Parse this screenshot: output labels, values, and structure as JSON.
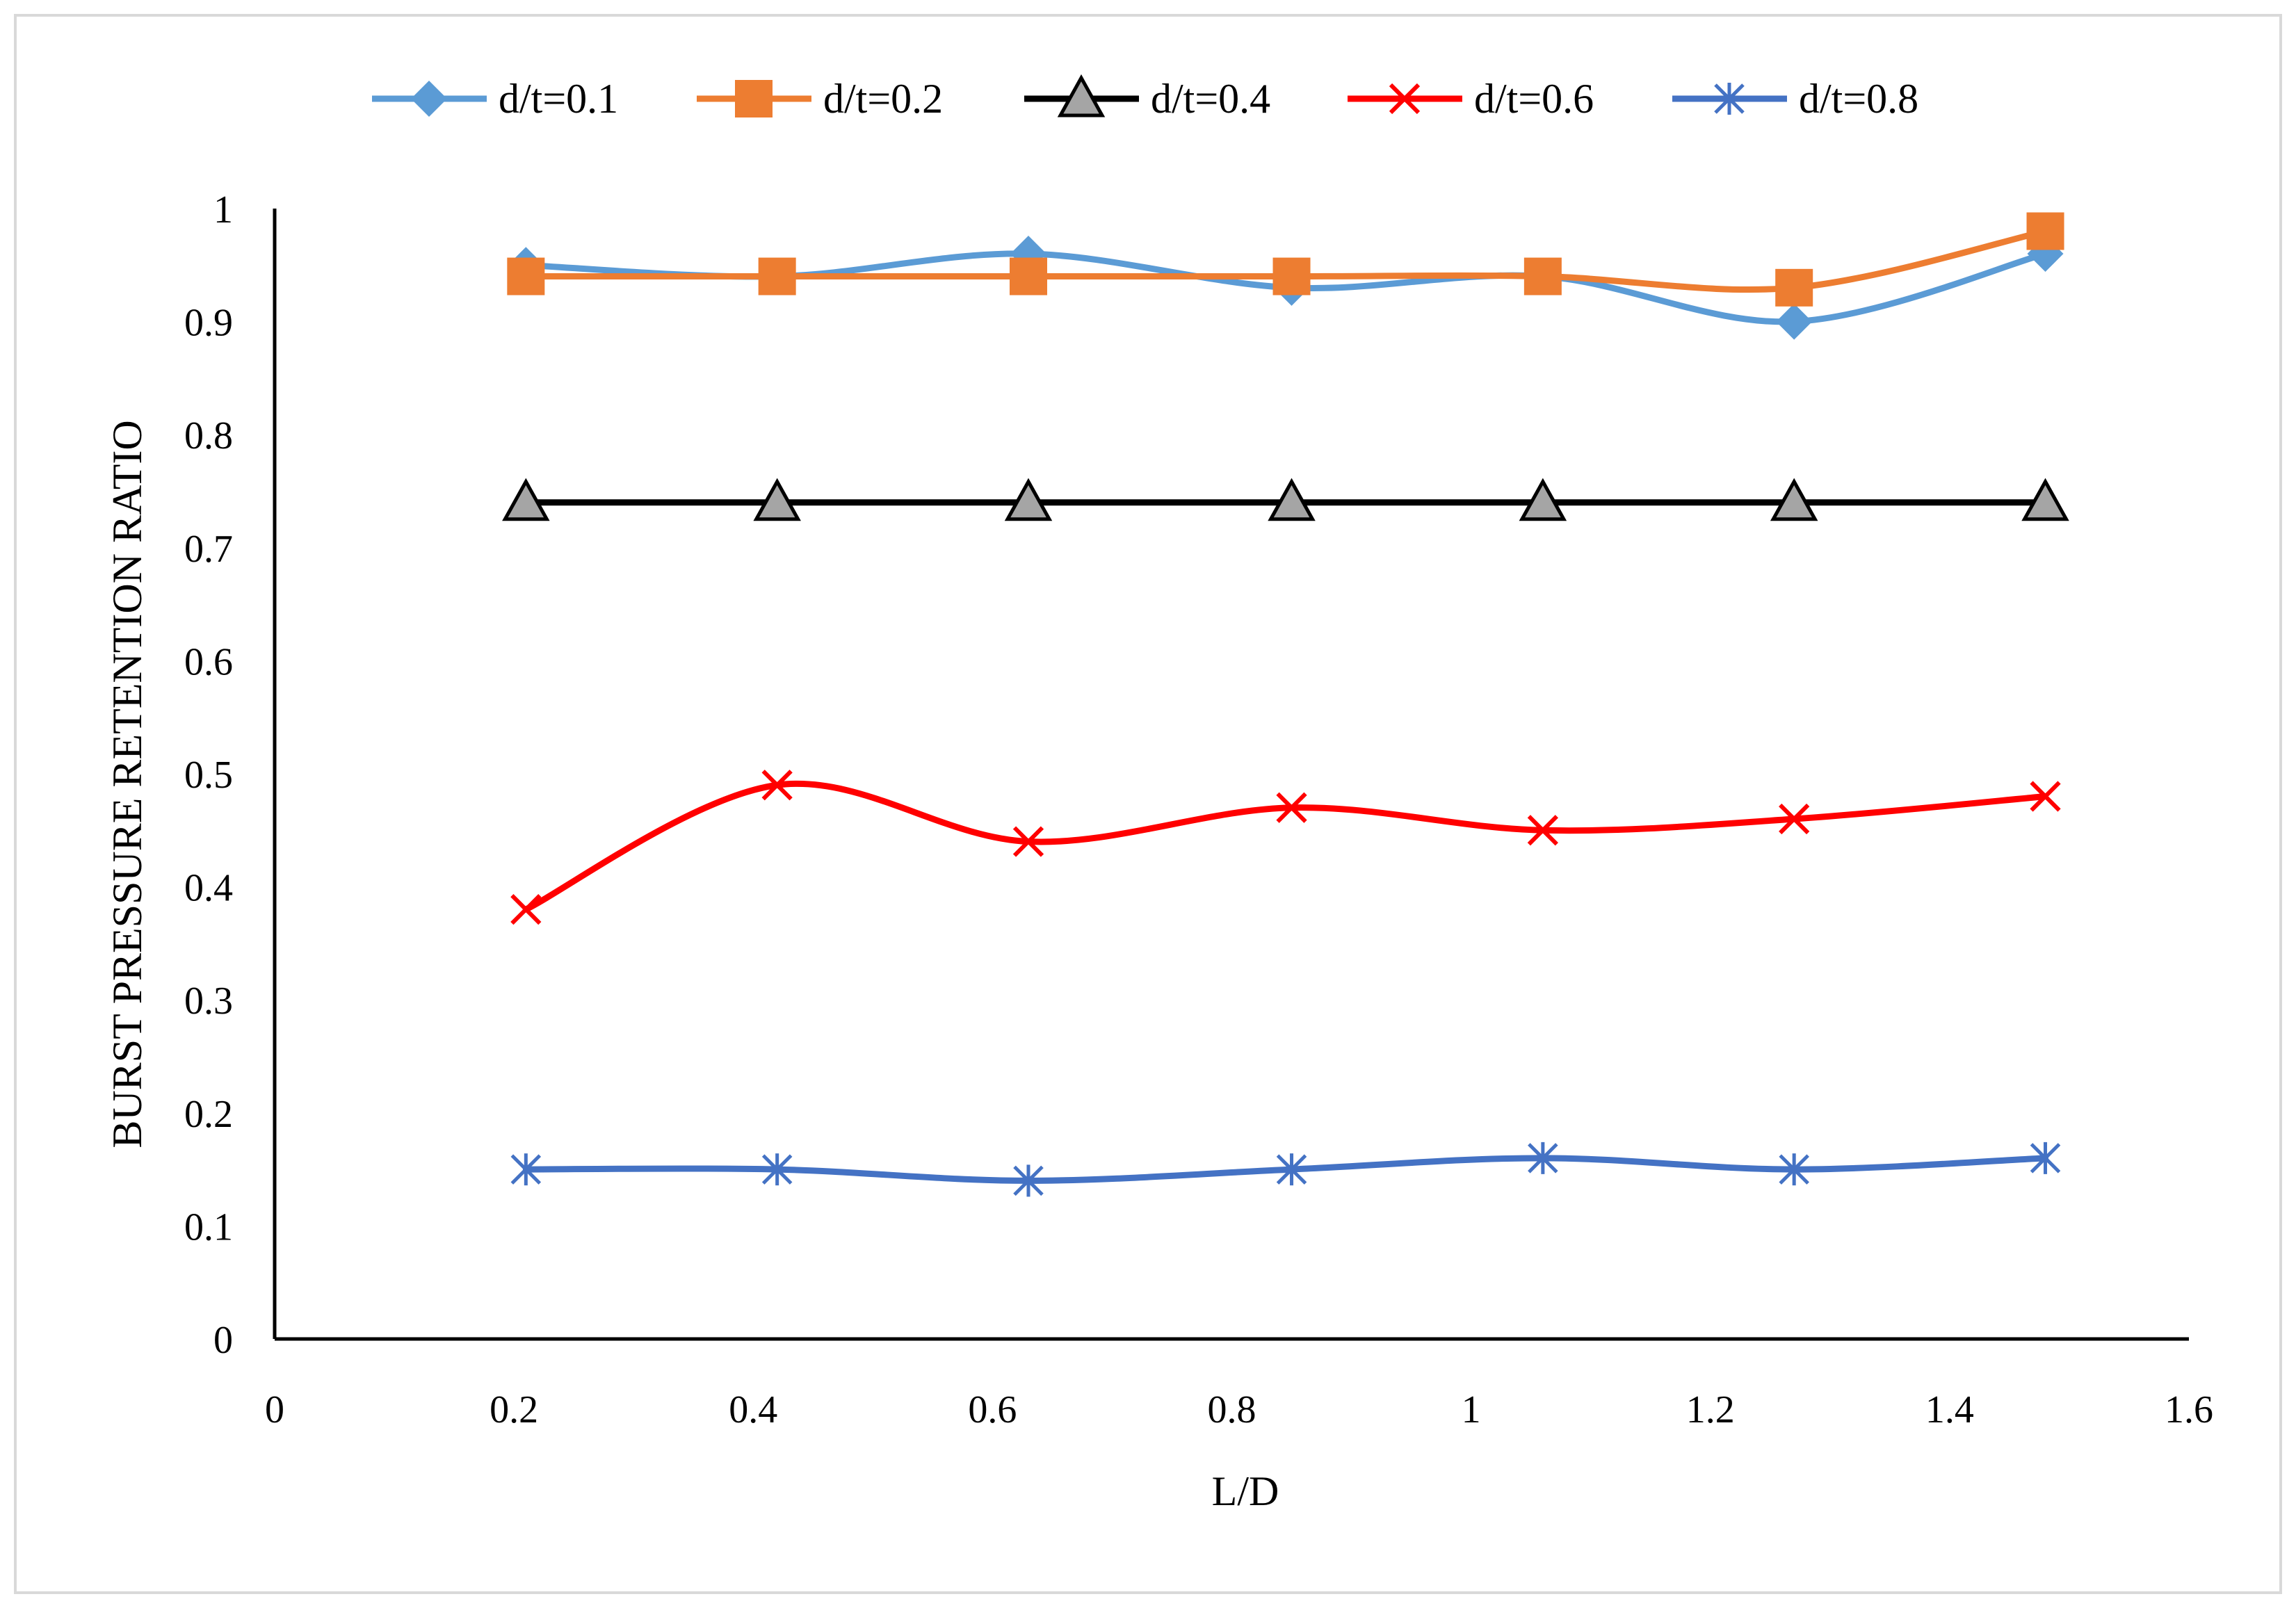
{
  "chart_data": {
    "type": "line",
    "smooth": true,
    "title": "",
    "xlabel": "L/D",
    "ylabel": "BURST PRESSURE RETENTION RATIO",
    "xlim": [
      0,
      1.6
    ],
    "ylim": [
      0,
      1
    ],
    "x_ticks": [
      0,
      0.2,
      0.4,
      0.6,
      0.8,
      1,
      1.2,
      1.4,
      1.6
    ],
    "x_tick_labels": [
      "0",
      "0.2",
      "0.4",
      "0.6",
      "0.8",
      "1",
      "1.2",
      "1.4",
      "1.6"
    ],
    "y_ticks": [
      0,
      0.1,
      0.2,
      0.3,
      0.4,
      0.5,
      0.6,
      0.7,
      0.8,
      0.9,
      1
    ],
    "y_tick_labels": [
      "0",
      "0.1",
      "0.2",
      "0.3",
      "0.4",
      "0.5",
      "0.6",
      "0.7",
      "0.8",
      "0.9",
      "1"
    ],
    "grid": false,
    "legend_position": "top-center",
    "x": [
      0.21,
      0.42,
      0.63,
      0.85,
      1.06,
      1.27,
      1.48
    ],
    "series": [
      {
        "name": "d/t=0.1",
        "values": [
          0.95,
          0.94,
          0.96,
          0.93,
          0.94,
          0.9,
          0.96
        ],
        "color": "#5b9bd5",
        "marker": "diamond"
      },
      {
        "name": "d/t=0.2",
        "values": [
          0.94,
          0.94,
          0.94,
          0.94,
          0.94,
          0.93,
          0.98
        ],
        "color": "#ed7d31",
        "marker": "square"
      },
      {
        "name": "d/t=0.4",
        "values": [
          0.74,
          0.74,
          0.74,
          0.74,
          0.74,
          0.74,
          0.74
        ],
        "color": "#000000",
        "marker": "triangle",
        "marker_fill": "#a5a5a5"
      },
      {
        "name": "d/t=0.6",
        "values": [
          0.38,
          0.49,
          0.44,
          0.47,
          0.45,
          0.46,
          0.48
        ],
        "color": "#ff0000",
        "marker": "x"
      },
      {
        "name": "d/t=0.8",
        "values": [
          0.15,
          0.15,
          0.14,
          0.15,
          0.16,
          0.15,
          0.16
        ],
        "color": "#4472c4",
        "marker": "asterisk"
      }
    ]
  }
}
